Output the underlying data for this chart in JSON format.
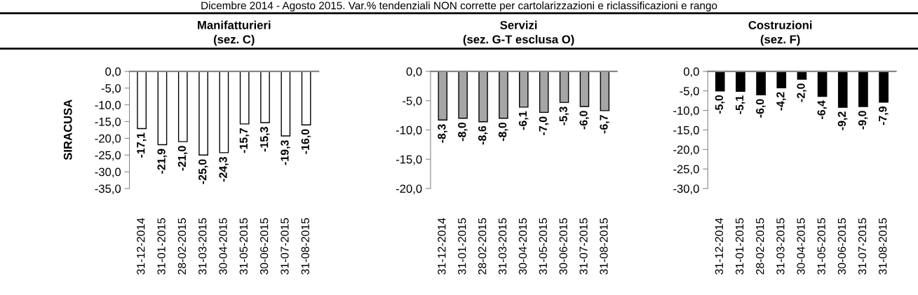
{
  "chart_data": [
    {
      "type": "bar",
      "title": "Manifatturieri\n(sez. C)",
      "ylabel": "SIRACUSA",
      "annotations": [
        "Dicembre 2014 - Agosto 2015. Var.% tendenziali NON corrette per cartolarizzazioni e riclassificazioni e rango"
      ],
      "categories": [
        "31-12-2014",
        "31-01-2015",
        "28-02-2015",
        "31-03-2015",
        "30-04-2015",
        "31-05-2015",
        "30-06-2015",
        "31-07-2015",
        "31-08-2015"
      ],
      "values": [
        -17.1,
        -21.9,
        -21.0,
        -25.0,
        -24.3,
        -15.7,
        -15.3,
        -19.3,
        -16.0
      ],
      "color": "#ffffff",
      "ylim": [
        -35,
        0
      ],
      "yticks": [
        {
          "value": 0,
          "label": "0,0"
        },
        {
          "value": -5,
          "label": "-5,0"
        },
        {
          "value": -10,
          "label": "-10,0"
        },
        {
          "value": -15,
          "label": "-15,0"
        },
        {
          "value": -20,
          "label": "-20,0"
        },
        {
          "value": -25,
          "label": "-25,0"
        },
        {
          "value": -30,
          "label": "-30,0"
        },
        {
          "value": -35,
          "label": "-35,0"
        }
      ],
      "value_labels": [
        "-17,1",
        "-21,9",
        "-21,0",
        "-25,0",
        "-24,3",
        "-15,7",
        "-15,3",
        "-19,3",
        "-16,0"
      ],
      "grid": false,
      "legend": false
    },
    {
      "type": "bar",
      "title": "Servizi\n(sez. G-T esclusa O)",
      "categories": [
        "31-12-2014",
        "31-01-2015",
        "28-02-2015",
        "31-03-2015",
        "30-04-2015",
        "31-05-2015",
        "30-06-2015",
        "31-07-2015",
        "31-08-2015"
      ],
      "values": [
        -8.3,
        -8.0,
        -8.6,
        -8.0,
        -6.1,
        -7.0,
        -5.3,
        -6.0,
        -6.7
      ],
      "color": "#a6a6a6",
      "ylim": [
        -20,
        0
      ],
      "yticks": [
        {
          "value": 0,
          "label": "0,0"
        },
        {
          "value": -5,
          "label": "-5,0"
        },
        {
          "value": -10,
          "label": "-10,0"
        },
        {
          "value": -15,
          "label": "-15,0"
        },
        {
          "value": -20,
          "label": "-20,0"
        }
      ],
      "value_labels": [
        "-8,3",
        "-8,0",
        "-8,6",
        "-8,0",
        "-6,1",
        "-7,0",
        "-5,3",
        "-6,0",
        "-6,7"
      ],
      "grid": false,
      "legend": false
    },
    {
      "type": "bar",
      "title": "Costruzioni\n(sez. F)",
      "categories": [
        "31-12-2014",
        "31-01-2015",
        "28-02-2015",
        "31-03-2015",
        "30-04-2015",
        "31-05-2015",
        "30-06-2015",
        "31-07-2015",
        "31-08-2015"
      ],
      "values": [
        -5.0,
        -5.1,
        -6.0,
        -4.2,
        -2.0,
        -6.4,
        -9.2,
        -9.0,
        -7.9
      ],
      "color": "#000000",
      "ylim": [
        -30,
        0
      ],
      "yticks": [
        {
          "value": 0,
          "label": "0,0"
        },
        {
          "value": -5,
          "label": "-5,0"
        },
        {
          "value": -10,
          "label": "-10,0"
        },
        {
          "value": -15,
          "label": "-15,0"
        },
        {
          "value": -20,
          "label": "-20,0"
        },
        {
          "value": -25,
          "label": "-25,0"
        },
        {
          "value": -30,
          "label": "-30,0"
        }
      ],
      "value_labels": [
        "-5,0",
        "-5,1",
        "-6,0",
        "-4,2",
        "-2,0",
        "-6,4",
        "-9,2",
        "-9,0",
        "-7,9"
      ],
      "grid": false,
      "legend": false
    }
  ]
}
